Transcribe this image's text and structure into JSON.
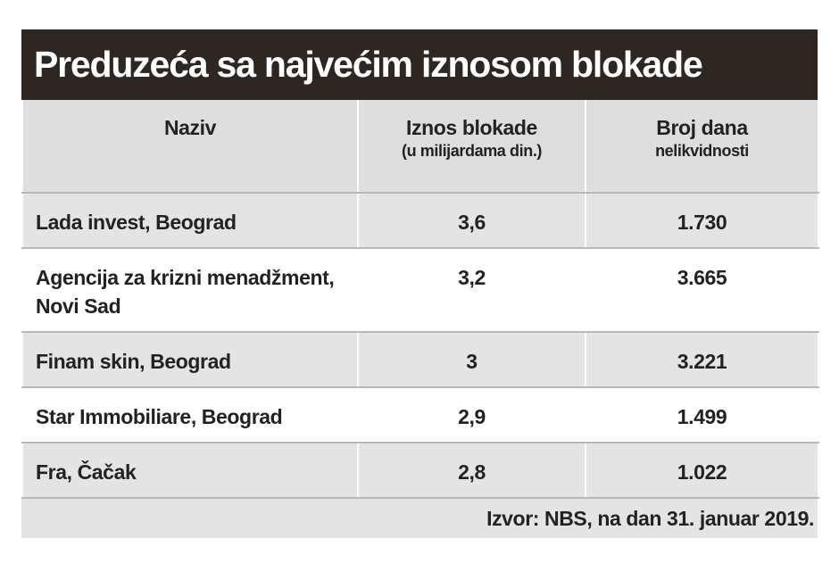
{
  "title": "Preduzeća sa najvećim iznosom blokade",
  "table": {
    "headers": [
      [
        "Naziv"
      ],
      [
        "Iznos blokade",
        "(u milijardama din.)"
      ],
      [
        "Broj dana",
        "nelikvidnosti"
      ]
    ],
    "rows": [
      [
        "Lada invest, Beograd",
        "3,6",
        "1.730"
      ],
      [
        "Agencija za krizni menadžment, Novi Sad",
        "3,2",
        "3.665"
      ],
      [
        "Finam skin, Beograd",
        "3",
        "3.221"
      ],
      [
        "Star Immobiliare, Beograd",
        "2,9",
        "1.499"
      ],
      [
        "Fra, Čačak",
        "2,8",
        "1.022"
      ]
    ]
  },
  "source": "Izvor: NBS, na dan 31. januar 2019."
}
